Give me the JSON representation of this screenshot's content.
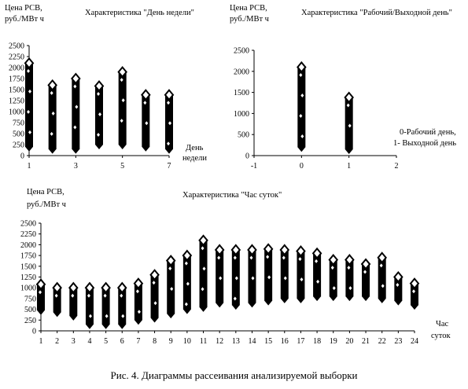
{
  "caption": "Рис. 4. Диаграммы рассеивания анализируемой выборки",
  "chart_data": [
    {
      "type": "scatter",
      "title": "Характеристика \"День недели\"",
      "ylabel_line1": "Цена РСВ,",
      "ylabel_line2": "руб./МВт ч",
      "xlabel_line1": "День",
      "xlabel_line2": "недели",
      "xlim": [
        1,
        7
      ],
      "ylim": [
        0,
        2500
      ],
      "xticks": [
        1,
        3,
        5,
        7
      ],
      "yticks": [
        0,
        250,
        500,
        750,
        1000,
        1250,
        1500,
        1750,
        2000,
        2250,
        2500
      ],
      "marker": "diamond",
      "points": [
        {
          "x": 1,
          "min": 200,
          "max": 2100
        },
        {
          "x": 2,
          "min": 150,
          "max": 1600
        },
        {
          "x": 3,
          "min": 150,
          "max": 1750
        },
        {
          "x": 4,
          "min": 250,
          "max": 1580
        },
        {
          "x": 5,
          "min": 250,
          "max": 1900
        },
        {
          "x": 6,
          "min": 200,
          "max": 1380
        },
        {
          "x": 7,
          "min": 150,
          "max": 1380
        }
      ]
    },
    {
      "type": "scatter",
      "title": "Характеристика \"Рабочий/Выходной день\"",
      "ylabel_line1": "Цена РСВ,",
      "ylabel_line2": "руб./МВт ч",
      "annotation_line1": "0-Рабочий день,",
      "annotation_line2": "1- Выходной день",
      "xlim": [
        -1,
        2
      ],
      "ylim": [
        0,
        2500
      ],
      "xticks": [
        -1,
        0,
        1,
        2
      ],
      "yticks": [
        0,
        500,
        1000,
        1500,
        2000,
        2500
      ],
      "marker": "diamond",
      "points": [
        {
          "x": 0,
          "min": 200,
          "max": 2100
        },
        {
          "x": 1,
          "min": 150,
          "max": 1380
        }
      ]
    },
    {
      "type": "scatter",
      "title": "Характеристика \"Час суток\"",
      "ylabel_line1": "Цена РСВ,",
      "ylabel_line2": "руб./МВт ч",
      "xlabel_line1": "Час",
      "xlabel_line2": "суток",
      "xlim": [
        1,
        24
      ],
      "ylim": [
        0,
        2500
      ],
      "xticks": [
        1,
        2,
        3,
        4,
        5,
        6,
        7,
        8,
        9,
        10,
        11,
        12,
        13,
        14,
        15,
        16,
        17,
        18,
        19,
        20,
        21,
        22,
        23,
        24
      ],
      "yticks": [
        0,
        250,
        500,
        750,
        1000,
        1250,
        1500,
        1750,
        2000,
        2250,
        2500
      ],
      "marker": "diamond",
      "points": [
        {
          "x": 1,
          "min": 480,
          "max": 1080
        },
        {
          "x": 2,
          "min": 430,
          "max": 1000
        },
        {
          "x": 3,
          "min": 350,
          "max": 1000
        },
        {
          "x": 4,
          "min": 150,
          "max": 1000
        },
        {
          "x": 5,
          "min": 150,
          "max": 1000
        },
        {
          "x": 6,
          "min": 150,
          "max": 1000
        },
        {
          "x": 7,
          "min": 250,
          "max": 1100
        },
        {
          "x": 8,
          "min": 300,
          "max": 1300
        },
        {
          "x": 9,
          "min": 400,
          "max": 1630
        },
        {
          "x": 10,
          "min": 500,
          "max": 1750
        },
        {
          "x": 11,
          "min": 550,
          "max": 2100
        },
        {
          "x": 12,
          "min": 650,
          "max": 1880
        },
        {
          "x": 13,
          "min": 600,
          "max": 1880
        },
        {
          "x": 14,
          "min": 650,
          "max": 1880
        },
        {
          "x": 15,
          "min": 700,
          "max": 1900
        },
        {
          "x": 16,
          "min": 750,
          "max": 1880
        },
        {
          "x": 17,
          "min": 750,
          "max": 1850
        },
        {
          "x": 18,
          "min": 800,
          "max": 1800
        },
        {
          "x": 19,
          "min": 800,
          "max": 1650
        },
        {
          "x": 20,
          "min": 800,
          "max": 1650
        },
        {
          "x": 21,
          "min": 800,
          "max": 1550
        },
        {
          "x": 22,
          "min": 750,
          "max": 1700
        },
        {
          "x": 23,
          "min": 700,
          "max": 1250
        },
        {
          "x": 24,
          "min": 600,
          "max": 1100
        }
      ]
    }
  ]
}
